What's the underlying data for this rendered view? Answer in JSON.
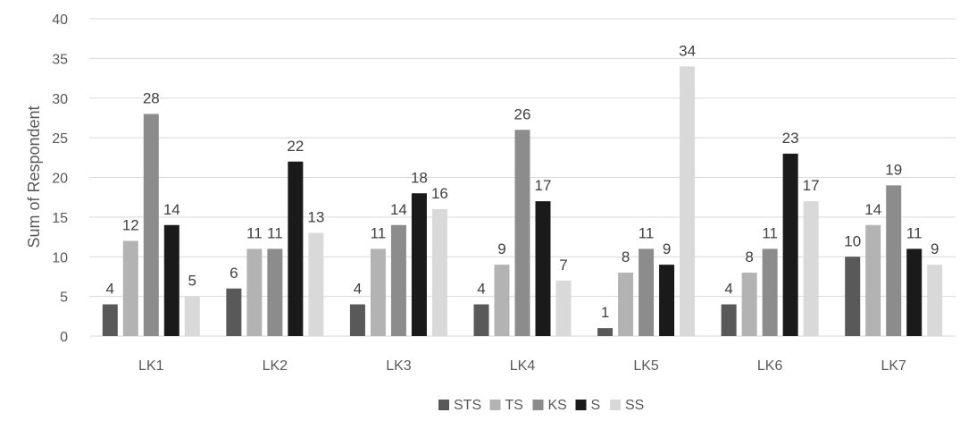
{
  "chart_data": {
    "type": "bar",
    "ylabel": "Sum of Respondent",
    "xlabel": "",
    "ylim": [
      0,
      40
    ],
    "yticks": [
      0,
      5,
      10,
      15,
      20,
      25,
      30,
      35,
      40
    ],
    "grid": true,
    "legend_position": "bottom",
    "categories": [
      "LK1",
      "LK2",
      "LK3",
      "LK4",
      "LK5",
      "LK6",
      "LK7"
    ],
    "series": [
      {
        "name": "STS",
        "color": "#595959",
        "values": [
          4,
          6,
          4,
          4,
          1,
          4,
          10
        ]
      },
      {
        "name": "TS",
        "color": "#b3b3b3",
        "values": [
          12,
          11,
          11,
          9,
          8,
          8,
          14
        ]
      },
      {
        "name": "KS",
        "color": "#8c8c8c",
        "values": [
          28,
          11,
          14,
          26,
          11,
          11,
          19
        ]
      },
      {
        "name": "S",
        "color": "#1a1a1a",
        "values": [
          14,
          22,
          18,
          17,
          9,
          23,
          11
        ]
      },
      {
        "name": "SS",
        "color": "#d9d9d9",
        "values": [
          5,
          13,
          16,
          7,
          34,
          17,
          9
        ]
      }
    ]
  }
}
